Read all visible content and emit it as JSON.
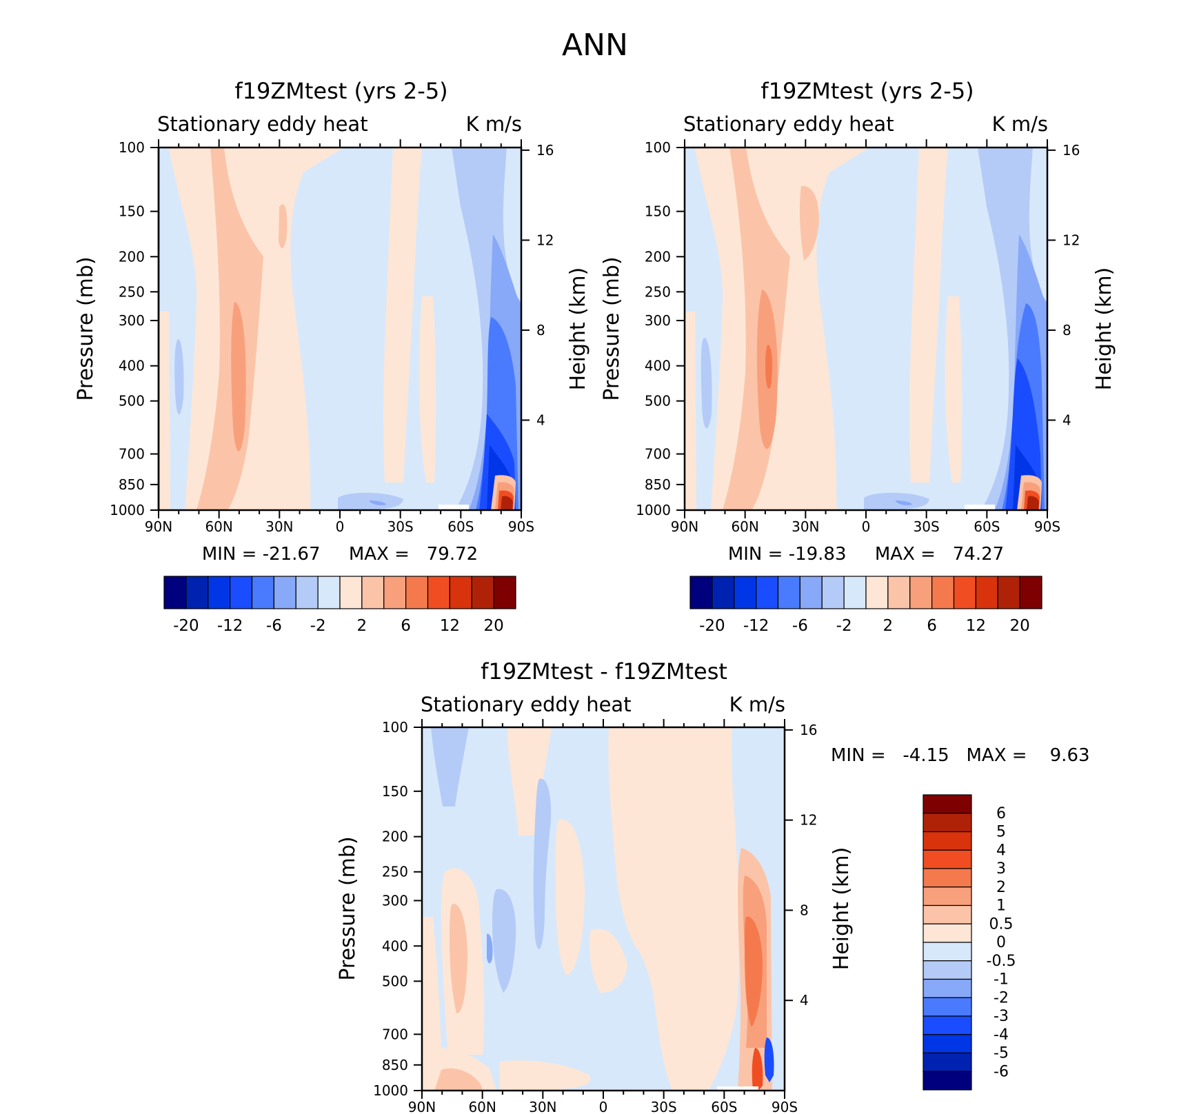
{
  "figure_title": "ANN",
  "chart_data": [
    {
      "type": "contour",
      "title": "f19ZMtest (yrs 2-5)",
      "subtitle_left": "Stationary eddy heat",
      "subtitle_right": "K m/s",
      "ylabel": "Pressure (mb)",
      "ylabel_right": "Height (km)",
      "x_ticks": [
        "90N",
        "60N",
        "30N",
        "0",
        "30S",
        "60S",
        "90S"
      ],
      "y_ticks": [
        "100",
        "150",
        "200",
        "250",
        "300",
        "400",
        "500",
        "700",
        "850",
        "1000"
      ],
      "y_ticks_right": [
        "16",
        "12",
        "8",
        "4"
      ],
      "min_label": "MIN =",
      "min_value": "-21.67",
      "max_label": "MAX =",
      "max_value": "79.72",
      "colorbar_labels": [
        "-20",
        "-12",
        "-6",
        "-2",
        "2",
        "6",
        "12",
        "20"
      ]
    },
    {
      "type": "contour",
      "title": "f19ZMtest (yrs 2-5)",
      "subtitle_left": "Stationary eddy heat",
      "subtitle_right": "K m/s",
      "ylabel": "Pressure (mb)",
      "ylabel_right": "Height (km)",
      "x_ticks": [
        "90N",
        "60N",
        "30N",
        "0",
        "30S",
        "60S",
        "90S"
      ],
      "y_ticks": [
        "100",
        "150",
        "200",
        "250",
        "300",
        "400",
        "500",
        "700",
        "850",
        "1000"
      ],
      "y_ticks_right": [
        "16",
        "12",
        "8",
        "4"
      ],
      "min_label": "MIN =",
      "min_value": "-19.83",
      "max_label": "MAX =",
      "max_value": "74.27",
      "colorbar_labels": [
        "-20",
        "-12",
        "-6",
        "-2",
        "2",
        "6",
        "12",
        "20"
      ]
    },
    {
      "type": "contour",
      "title": "f19ZMtest - f19ZMtest",
      "subtitle_left": "Stationary eddy heat",
      "subtitle_right": "K m/s",
      "ylabel": "Pressure (mb)",
      "ylabel_right": "Height (km)",
      "x_ticks": [
        "90N",
        "60N",
        "30N",
        "0",
        "30S",
        "60S",
        "90S"
      ],
      "y_ticks": [
        "100",
        "150",
        "200",
        "250",
        "300",
        "400",
        "500",
        "700",
        "850",
        "1000"
      ],
      "y_ticks_right": [
        "16",
        "12",
        "8",
        "4"
      ],
      "min_label": "MIN =",
      "min_value": "-4.15",
      "max_label": "MAX =",
      "max_value": "9.63",
      "colorbar_labels": [
        "6",
        "5",
        "4",
        "3",
        "2",
        "1",
        "0.5",
        "0",
        "-0.5",
        "-1",
        "-2",
        "-3",
        "-4",
        "-5",
        "-6"
      ]
    }
  ],
  "colors": {
    "scale": [
      "#00007f",
      "#0022b0",
      "#0036e6",
      "#1a4dff",
      "#4a7bff",
      "#88a8f8",
      "#b4cbf8",
      "#d8e8fb",
      "#fde6d6",
      "#fbc4a8",
      "#f8a07c",
      "#f47a4e",
      "#f04e22",
      "#d8330c",
      "#b02208",
      "#7f0000"
    ]
  }
}
